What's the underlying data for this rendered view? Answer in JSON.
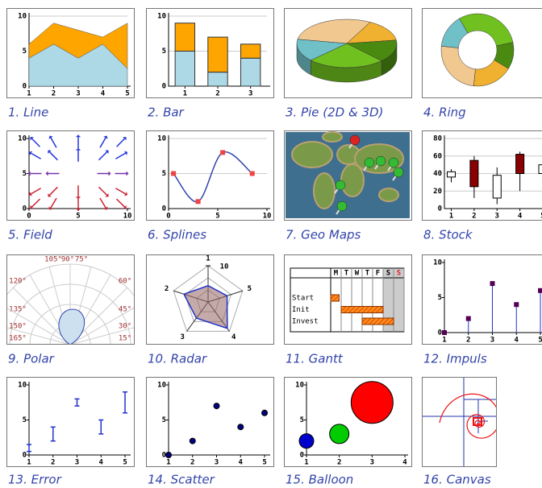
{
  "tiles": [
    {
      "caption": "1. Line",
      "chart": {
        "type": "area",
        "x": [
          1,
          2,
          3,
          4,
          5
        ],
        "series": [
          {
            "color": "#add8e6",
            "values": [
              4,
              6,
              4,
              6,
              2.5
            ]
          },
          {
            "color": "#ffa500",
            "values": [
              2,
              3,
              4,
              1,
              6.5
            ]
          }
        ],
        "xlim": [
          1,
          5
        ],
        "ylim": [
          0,
          10
        ],
        "xticks": [
          1,
          2,
          3,
          4,
          5
        ],
        "yticks": [
          0,
          5,
          10
        ],
        "grid": true
      }
    },
    {
      "caption": "2. Bar",
      "chart": {
        "type": "bar",
        "x": [
          1,
          2,
          3
        ],
        "series": [
          {
            "color": "#add8e6",
            "values": [
              5,
              2,
              4
            ]
          },
          {
            "color": "#ffa500",
            "values": [
              4,
              5,
              2
            ]
          }
        ],
        "xlim": [
          0.5,
          3.5
        ],
        "ylim": [
          0,
          10
        ],
        "xticks": [
          1,
          2,
          3
        ],
        "yticks": [
          0,
          5,
          10
        ],
        "grid": true
      }
    },
    {
      "caption": "3. Pie (2D & 3D)",
      "chart": {
        "type": "pie",
        "values": [
          30,
          15,
          15,
          25,
          15
        ],
        "colors": [
          "#f0c890",
          "#f0b030",
          "#4a8a10",
          "#70c020",
          "#70c0c8"
        ]
      }
    },
    {
      "caption": "4. Ring",
      "chart": {
        "type": "ring",
        "values": [
          30,
          12,
          18,
          25,
          15
        ],
        "colors": [
          "#70c020",
          "#4a8a10",
          "#f0b030",
          "#f0c890",
          "#70c0c8"
        ]
      }
    },
    {
      "caption": "5. Field",
      "chart": {
        "type": "field",
        "xlim": [
          0,
          10
        ],
        "ylim": [
          0,
          10
        ],
        "xticks": [
          0,
          5,
          10
        ],
        "yticks": [
          0,
          5,
          10
        ]
      }
    },
    {
      "caption": "6. Splines",
      "chart": {
        "type": "spline",
        "x": [
          0.5,
          3,
          5.5,
          8.5
        ],
        "values": [
          5,
          1,
          8,
          5
        ],
        "color": "#ee4444",
        "line_color": "#3344aa",
        "xlim": [
          0,
          10
        ],
        "ylim": [
          0,
          10
        ],
        "xticks": [
          0,
          5,
          10
        ],
        "yticks": [
          0,
          5,
          10
        ],
        "grid": true
      }
    },
    {
      "caption": "7. Geo Maps",
      "chart": {
        "type": "map"
      }
    },
    {
      "caption": "8. Stock",
      "chart": {
        "type": "stock",
        "x": [
          1,
          2,
          3,
          4,
          5
        ],
        "open": [
          36,
          55,
          12,
          62,
          40
        ],
        "close": [
          42,
          25,
          38,
          40,
          50
        ],
        "high": [
          45,
          60,
          47,
          65,
          63
        ],
        "low": [
          30,
          12,
          5,
          20,
          20
        ],
        "xlim": [
          0.7,
          5
        ],
        "ylim": [
          0,
          80
        ],
        "xticks": [
          1,
          2,
          3,
          4,
          5
        ],
        "yticks": [
          0,
          20,
          40,
          60,
          80
        ],
        "grid": true
      }
    },
    {
      "caption": "9. Polar",
      "chart": {
        "type": "polar",
        "angle_ticks": [
          {
            "value": 105,
            "label": "105°"
          },
          {
            "value": 90,
            "label": "90°"
          },
          {
            "value": 75,
            "label": "75°"
          },
          {
            "value": 120,
            "label": "120°"
          },
          {
            "value": 60,
            "label": "60°"
          },
          {
            "value": 135,
            "label": "135°"
          },
          {
            "value": 45,
            "label": "45°"
          },
          {
            "value": 150,
            "label": "150°"
          },
          {
            "value": 30,
            "label": "30°"
          },
          {
            "value": 165,
            "label": "165°"
          },
          {
            "value": 15,
            "label": "15°"
          }
        ]
      }
    },
    {
      "caption": "10. Radar",
      "chart": {
        "type": "radar",
        "categories": [
          "1",
          "2",
          "3",
          "4",
          "5"
        ],
        "values": [
          4.5,
          7,
          5.5,
          9,
          5.5
        ],
        "rlim": [
          0,
          10
        ],
        "rticks": [
          10
        ]
      }
    },
    {
      "caption": "11. Gantt",
      "chart": {
        "type": "gantt",
        "days": [
          "M",
          "T",
          "W",
          "T",
          "F",
          "S",
          "S"
        ],
        "tasks": [
          {
            "name": "Start",
            "start": 0,
            "end": 0.8
          },
          {
            "name": "Init",
            "start": 1,
            "end": 5
          },
          {
            "name": "Invest",
            "start": 3,
            "end": 6
          }
        ]
      }
    },
    {
      "caption": "12. Impuls",
      "chart": {
        "type": "impuls",
        "x": [
          1,
          2,
          3,
          4,
          5
        ],
        "values": [
          0,
          2,
          7,
          4,
          6
        ],
        "color": "#2233cc",
        "marker_color": "#550055",
        "xlim": [
          1,
          5.1
        ],
        "ylim": [
          0,
          10
        ],
        "xticks": [
          1,
          2,
          3,
          4,
          5
        ],
        "yticks": [
          0,
          5,
          10
        ]
      }
    },
    {
      "caption": "13. Error",
      "chart": {
        "type": "error",
        "x": [
          1,
          2,
          3,
          4,
          5
        ],
        "values": [
          1,
          3,
          7.5,
          4,
          7.5
        ],
        "errors": [
          0.5,
          1,
          0.5,
          1,
          1.5
        ],
        "color": "#2233cc",
        "xlim": [
          1,
          5.1
        ],
        "ylim": [
          0,
          10
        ],
        "xticks": [
          1,
          2,
          3,
          4,
          5
        ],
        "yticks": [
          0,
          5,
          10
        ]
      }
    },
    {
      "caption": "14. Scatter",
      "chart": {
        "type": "scatter",
        "x": [
          1,
          2,
          3,
          4,
          5
        ],
        "values": [
          0,
          2,
          7,
          4,
          6
        ],
        "color": "#000080",
        "xlim": [
          1,
          5.1
        ],
        "ylim": [
          0,
          10
        ],
        "xticks": [
          1,
          2,
          3,
          4,
          5
        ],
        "yticks": [
          0,
          5,
          10
        ]
      }
    },
    {
      "caption": "15. Balloon",
      "chart": {
        "type": "balloon",
        "x": [
          1,
          2,
          3
        ],
        "values": [
          2,
          3,
          7.5
        ],
        "sizes": [
          9,
          12,
          26
        ],
        "colors": [
          "#0000cc",
          "#00cc00",
          "#ff0000"
        ],
        "xlim": [
          1,
          4
        ],
        "ylim": [
          0,
          10
        ],
        "xticks": [
          1,
          2,
          3,
          4
        ],
        "yticks": [
          0,
          5,
          10
        ]
      }
    },
    {
      "caption": "16. Canvas",
      "chart": {
        "type": "canvas"
      }
    }
  ]
}
